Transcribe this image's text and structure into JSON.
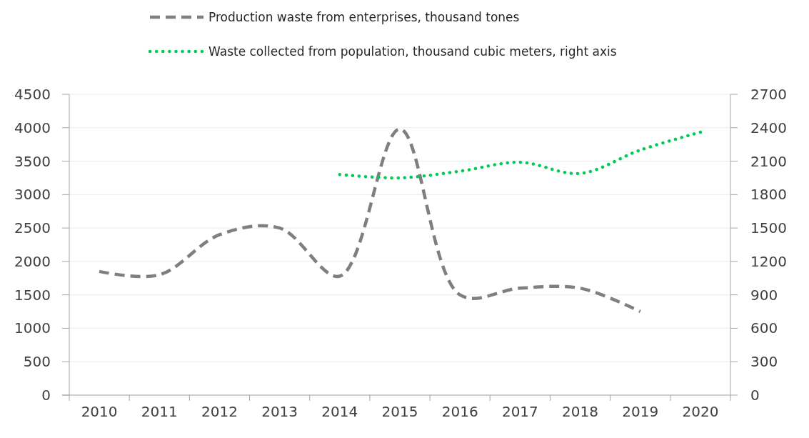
{
  "chart_data": {
    "type": "line",
    "categories": [
      "2010",
      "2011",
      "2012",
      "2013",
      "2014",
      "2015",
      "2016",
      "2017",
      "2018",
      "2019",
      "2020"
    ],
    "series": [
      {
        "name": "Production waste from enterprises, thousand tones",
        "color": "#7f7f7f",
        "line_style": "dashed",
        "values": [
          1850,
          1800,
          2400,
          2500,
          1780,
          3980,
          1500,
          1600,
          1600,
          1250,
          null
        ]
      },
      {
        "name": "Waste collected from population, thousand cubic meters, right axis",
        "color": "#00cc55",
        "line_style": "dotted",
        "axis": "y2",
        "values": [
          null,
          null,
          null,
          null,
          1980,
          1950,
          2010,
          2090,
          1990,
          2200,
          2360
        ]
      }
    ],
    "ylim": [
      0,
      4500
    ],
    "yticks": [
      0,
      500,
      1000,
      1500,
      2000,
      2500,
      3000,
      3500,
      4000,
      4500
    ],
    "y2lim": [
      0,
      2700
    ],
    "y2ticks": [
      0,
      300,
      600,
      900,
      1200,
      1500,
      1800,
      2100,
      2400,
      2700
    ],
    "grid": "y",
    "legend": "top"
  }
}
